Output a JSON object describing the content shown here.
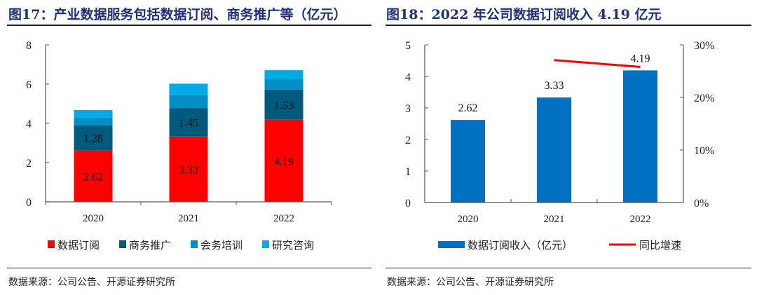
{
  "left": {
    "title": "图17：产业数据服务包括数据订阅、商务推广等（亿元）",
    "source": "数据来源：公司公告、开源证券研究所"
  },
  "right": {
    "title": "图18：2022 年公司数据订阅收入 4.19 亿元",
    "source": "数据来源：公司公告、开源证券研究所"
  },
  "chart_data": [
    {
      "type": "bar",
      "stacked": true,
      "categories": [
        "2020",
        "2021",
        "2022"
      ],
      "ylim": [
        0,
        8
      ],
      "yticks": [
        "0",
        "2",
        "4",
        "6",
        "8"
      ],
      "grid": false,
      "legend_position": "bottom",
      "series": [
        {
          "name": "数据订阅",
          "values": [
            2.62,
            3.33,
            4.19
          ],
          "labels": [
            "2.62",
            "3.33",
            "4.19"
          ],
          "color": "#FF0000"
        },
        {
          "name": "商务推广",
          "values": [
            1.28,
            1.45,
            1.53
          ],
          "labels": [
            "1.28",
            "1.45",
            "1.53"
          ],
          "color": "#005A7E"
        },
        {
          "name": "会务培训",
          "values": [
            0.39,
            0.65,
            0.53
          ],
          "color": "#008FC4"
        },
        {
          "name": "研究咨询",
          "values": [
            0.39,
            0.59,
            0.46
          ],
          "color": "#00ABE6"
        }
      ]
    },
    {
      "type": "bar",
      "categories": [
        "2020",
        "2021",
        "2022"
      ],
      "ylim": [
        0,
        5
      ],
      "yticks": [
        "0",
        "1",
        "2",
        "3",
        "4",
        "5"
      ],
      "y2lim": [
        0,
        30
      ],
      "y2ticks": [
        "0%",
        "10%",
        "20%",
        "30%"
      ],
      "grid": false,
      "legend_position": "bottom",
      "series": [
        {
          "name": "数据订阅收入（亿元）",
          "kind": "bar",
          "axis": "left",
          "values": [
            2.62,
            3.33,
            4.19
          ],
          "labels": [
            "2.62",
            "3.33",
            "4.19"
          ],
          "color": "#0070C0"
        },
        {
          "name": "同比增速",
          "kind": "line",
          "axis": "right",
          "values": [
            null,
            27.1,
            25.8
          ],
          "unit": "%",
          "color": "#FF0000"
        }
      ]
    }
  ]
}
